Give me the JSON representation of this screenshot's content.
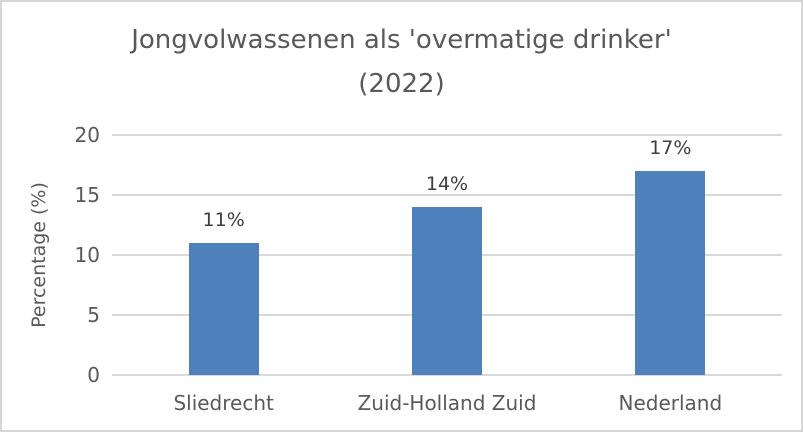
{
  "chart": {
    "title_line1": "Jongvolwassenen als 'overmatige drinker'",
    "title_line2": "(2022)"
  },
  "chart_data": {
    "type": "bar",
    "title": "Jongvolwassenen als 'overmatige drinker' (2022)",
    "categories": [
      "Sliedrecht",
      "Zuid-Holland Zuid",
      "Nederland"
    ],
    "values": [
      11,
      14,
      17
    ],
    "data_labels": [
      "11%",
      "14%",
      "17%"
    ],
    "xlabel": "",
    "ylabel": "Percentage (%)",
    "ylim": [
      0,
      20
    ],
    "yticks": [
      0,
      5,
      10,
      15,
      20
    ],
    "grid": "horizontal",
    "legend": "none",
    "bar_color": "#4e80bc",
    "gridline_color": "#d9d9d9",
    "text_color": "#595959",
    "data_label_color": "#3f3f3f",
    "frame_border_color": "#d6d6d6",
    "background_color": "#ffffff"
  }
}
